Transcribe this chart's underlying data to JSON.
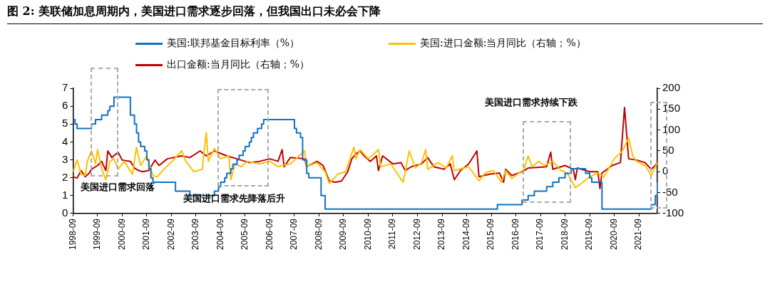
{
  "chart_data": {
    "type": "line",
    "title": "图 2:  美联储加息周期内，美国进口需求逐步回落，但我国出口未必会下降",
    "legend": "top",
    "grid": false,
    "xlim": [
      "1998-09",
      "2022-06"
    ],
    "xticks": [
      "1998-09",
      "1999-09",
      "2000-09",
      "2001-09",
      "2002-09",
      "2003-09",
      "2004-09",
      "2005-09",
      "2006-09",
      "2007-09",
      "2008-09",
      "2009-09",
      "2010-09",
      "2011-09",
      "2012-09",
      "2013-09",
      "2014-09",
      "2015-09",
      "2016-09",
      "2017-09",
      "2018-09",
      "2019-09",
      "2020-09",
      "2021-09"
    ],
    "ylim": [
      0,
      7
    ],
    "yticks": [
      0,
      1,
      2,
      3,
      4,
      5,
      6,
      7
    ],
    "y2lim": [
      -100,
      200
    ],
    "y2ticks": [
      -100,
      -50,
      0,
      50,
      100,
      150,
      200
    ],
    "annotations": [
      "美国进口需求回落",
      "美国进口需求先降落后升",
      "美国进口需求持续下跌"
    ],
    "series": [
      {
        "name": "美国:联邦基金目标利率（%）",
        "type": "step",
        "axis": "y",
        "color": "#0e72c4",
        "x": [
          "1998-09",
          "1998-10",
          "1998-11",
          "1999-06",
          "1999-08",
          "1999-11",
          "2000-02",
          "2000-03",
          "2000-05",
          "2001-01",
          "2001-03",
          "2001-04",
          "2001-05",
          "2001-06",
          "2001-08",
          "2001-09",
          "2001-10",
          "2001-11",
          "2001-12",
          "2002-11",
          "2003-06",
          "2004-06",
          "2004-08",
          "2004-09",
          "2004-11",
          "2004-12",
          "2005-02",
          "2005-03",
          "2005-05",
          "2005-06",
          "2005-08",
          "2005-09",
          "2005-11",
          "2005-12",
          "2006-01",
          "2006-03",
          "2006-05",
          "2006-06",
          "2007-09",
          "2007-10",
          "2007-12",
          "2008-01",
          "2008-03",
          "2008-04",
          "2008-10",
          "2008-12",
          "2015-12",
          "2016-12",
          "2017-03",
          "2017-06",
          "2017-12",
          "2018-03",
          "2018-06",
          "2018-09",
          "2018-12",
          "2019-07",
          "2019-09",
          "2019-10",
          "2020-03",
          "2022-03",
          "2022-05",
          "2022-06"
        ],
        "values": [
          5.25,
          5.0,
          4.75,
          5.0,
          5.25,
          5.5,
          5.75,
          6.0,
          6.5,
          5.5,
          5.0,
          4.5,
          4.0,
          3.75,
          3.5,
          3.0,
          2.5,
          2.0,
          1.75,
          1.25,
          1.0,
          1.25,
          1.5,
          1.75,
          2.0,
          2.25,
          2.5,
          2.75,
          3.0,
          3.25,
          3.5,
          3.75,
          4.0,
          4.25,
          4.5,
          4.75,
          5.0,
          5.25,
          4.75,
          4.5,
          4.25,
          3.0,
          2.25,
          2.0,
          1.0,
          0.25,
          0.5,
          0.75,
          1.0,
          1.25,
          1.5,
          1.75,
          2.0,
          2.25,
          2.5,
          2.25,
          2.0,
          1.75,
          0.25,
          0.5,
          1.0,
          1.75
        ]
      },
      {
        "name": "美国:进口金额:当月同比（右轴；%）",
        "type": "line",
        "axis": "y2",
        "color": "#ffc000",
        "x": [
          "1998-09",
          "1998-11",
          "1999-01",
          "1999-03",
          "1999-04",
          "1999-06",
          "1999-08",
          "1999-09",
          "1999-11",
          "2000-01",
          "2000-03",
          "2000-05",
          "2000-07",
          "2000-10",
          "2001-02",
          "2001-04",
          "2001-06",
          "2001-09",
          "2001-12",
          "2002-02",
          "2002-06",
          "2002-10",
          "2003-02",
          "2003-04",
          "2003-08",
          "2003-12",
          "2004-02",
          "2004-03",
          "2004-06",
          "2004-09",
          "2005-01",
          "2005-02",
          "2005-04",
          "2005-07",
          "2005-10",
          "2006-04",
          "2006-09",
          "2007-01",
          "2007-03",
          "2007-07",
          "2008-02",
          "2008-03",
          "2008-08",
          "2008-12",
          "2009-02",
          "2009-06",
          "2009-10",
          "2010-02",
          "2010-03",
          "2010-05",
          "2010-09",
          "2011-02",
          "2011-03",
          "2011-08",
          "2012-02",
          "2012-05",
          "2012-08",
          "2012-11",
          "2013-01",
          "2013-02",
          "2013-07",
          "2013-11",
          "2014-02",
          "2014-03",
          "2014-10",
          "2015-03",
          "2015-06",
          "2015-10",
          "2016-02",
          "2016-04",
          "2016-07",
          "2017-01",
          "2017-03",
          "2017-05",
          "2017-08",
          "2017-11",
          "2018-03",
          "2018-07",
          "2018-10",
          "2019-02",
          "2019-05",
          "2019-09",
          "2020-01",
          "2020-04",
          "2020-09",
          "2021-01",
          "2021-04",
          "2021-06",
          "2021-08",
          "2021-12",
          "2022-03",
          "2022-06"
        ],
        "values": [
          0,
          28,
          -6,
          -9,
          25,
          50,
          19,
          53,
          6,
          -19,
          25,
          31,
          6,
          25,
          -6,
          59,
          15,
          38,
          -9,
          -12,
          9,
          28,
          50,
          25,
          0,
          6,
          94,
          25,
          56,
          31,
          38,
          -19,
          19,
          12,
          25,
          19,
          25,
          12,
          15,
          19,
          50,
          12,
          22,
          0,
          -28,
          -6,
          0,
          59,
          31,
          53,
          31,
          53,
          12,
          19,
          -25,
          50,
          9,
          22,
          53,
          6,
          22,
          9,
          38,
          3,
          12,
          -22,
          -3,
          3,
          -25,
          3,
          -16,
          6,
          38,
          12,
          25,
          15,
          25,
          3,
          -3,
          -38,
          -28,
          -12,
          -3,
          -12,
          31,
          50,
          81,
          38,
          25,
          15,
          -9,
          22
        ]
      },
      {
        "name": "出口金额:当月同比（右轴；%）",
        "type": "line",
        "axis": "y2",
        "color": "#c00000",
        "x": [
          "1998-09",
          "1998-11",
          "1999-01",
          "1999-03",
          "1999-05",
          "1999-06",
          "1999-09",
          "1999-11",
          "2000-01",
          "2000-02",
          "2000-04",
          "2000-07",
          "2000-09",
          "2001-01",
          "2001-03",
          "2001-05",
          "2001-07",
          "2001-10",
          "2002-01",
          "2002-03",
          "2002-07",
          "2003-02",
          "2003-06",
          "2003-11",
          "2004-02",
          "2004-06",
          "2004-12",
          "2005-05",
          "2005-11",
          "2006-04",
          "2006-09",
          "2007-01",
          "2007-03",
          "2007-04",
          "2007-07",
          "2008-02",
          "2008-03",
          "2008-08",
          "2008-11",
          "2009-02",
          "2009-05",
          "2009-08",
          "2009-11",
          "2010-01",
          "2010-03",
          "2010-05",
          "2010-07",
          "2010-10",
          "2011-01",
          "2011-02",
          "2011-04",
          "2011-09",
          "2012-01",
          "2012-03",
          "2012-06",
          "2012-11",
          "2013-02",
          "2013-05",
          "2013-10",
          "2014-01",
          "2014-03",
          "2014-06",
          "2014-10",
          "2015-02",
          "2015-03",
          "2015-08",
          "2016-01",
          "2016-03",
          "2016-04",
          "2016-07",
          "2016-12",
          "2017-03",
          "2017-12",
          "2018-02",
          "2018-03",
          "2018-09",
          "2019-01",
          "2019-02",
          "2019-03",
          "2019-09",
          "2020-01",
          "2020-02",
          "2020-03",
          "2020-08",
          "2020-12",
          "2021-02",
          "2021-04",
          "2021-08",
          "2021-12",
          "2022-03",
          "2022-05",
          "2022-06"
        ],
        "values": [
          -12,
          -15,
          3,
          -12,
          -3,
          6,
          15,
          25,
          3,
          50,
          34,
          47,
          28,
          25,
          9,
          3,
          0,
          3,
          28,
          15,
          31,
          38,
          34,
          50,
          38,
          50,
          38,
          31,
          22,
          25,
          31,
          25,
          53,
          12,
          34,
          31,
          12,
          25,
          15,
          -22,
          -25,
          -22,
          0,
          31,
          43,
          50,
          38,
          25,
          38,
          3,
          38,
          19,
          22,
          3,
          12,
          19,
          34,
          12,
          6,
          19,
          -19,
          3,
          19,
          50,
          -12,
          -6,
          -3,
          -25,
          6,
          -9,
          0,
          9,
          12,
          47,
          6,
          15,
          6,
          -19,
          9,
          0,
          0,
          -40,
          -3,
          15,
          22,
          154,
          31,
          28,
          22,
          6,
          15,
          22
        ]
      }
    ]
  }
}
